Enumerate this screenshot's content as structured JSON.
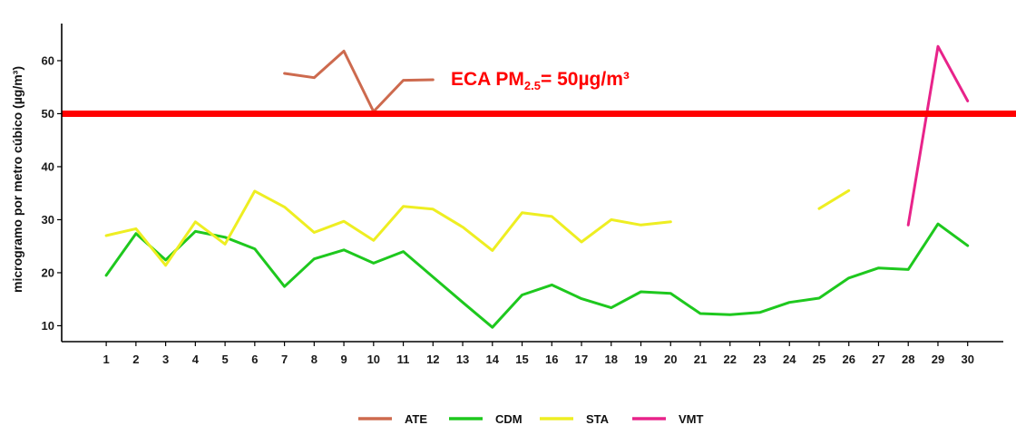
{
  "chart_data": {
    "type": "line",
    "ylabel": "microgramo por metro cúbico (µg/m³)",
    "xlabel": "",
    "x": [
      1,
      2,
      3,
      4,
      5,
      6,
      7,
      8,
      9,
      10,
      11,
      12,
      13,
      14,
      15,
      16,
      17,
      18,
      19,
      20,
      21,
      22,
      23,
      24,
      25,
      26,
      27,
      28,
      29,
      30
    ],
    "xlim": [
      -0.5,
      31.2
    ],
    "ylim": [
      7,
      67
    ],
    "yticks": [
      10,
      20,
      30,
      40,
      50,
      60
    ],
    "grid": false,
    "legend_position": "bottom",
    "reference_line": {
      "value": 50,
      "color": "#ff0000",
      "label_main": "ECA PM",
      "label_sub": "2.5",
      "label_rest": "= 50µg/m³"
    },
    "series": [
      {
        "name": "ATE",
        "color": "#cd6a4e",
        "values": [
          null,
          null,
          null,
          null,
          null,
          null,
          57.6,
          56.8,
          61.8,
          50.4,
          56.3,
          56.4,
          null,
          null,
          null,
          null,
          null,
          null,
          null,
          null,
          null,
          null,
          null,
          null,
          null,
          null,
          null,
          null,
          null,
          null
        ]
      },
      {
        "name": "CDM",
        "color": "#1ec81e",
        "values": [
          19.5,
          27.4,
          22.4,
          27.8,
          26.7,
          24.5,
          17.4,
          22.6,
          24.3,
          21.8,
          24.0,
          19.2,
          14.4,
          9.7,
          15.8,
          17.7,
          15.1,
          13.4,
          16.4,
          16.1,
          12.3,
          12.1,
          12.5,
          14.4,
          15.2,
          19.0,
          20.9,
          20.6,
          29.2,
          25.1
        ]
      },
      {
        "name": "STA",
        "color": "#eeee22",
        "values": [
          27.0,
          28.3,
          21.4,
          29.6,
          25.4,
          35.4,
          32.4,
          27.6,
          29.7,
          26.1,
          32.5,
          32.0,
          28.6,
          24.2,
          31.3,
          30.6,
          25.8,
          30.0,
          29.0,
          29.6,
          null,
          null,
          null,
          null,
          32.1,
          35.5,
          null,
          null,
          null,
          null
        ]
      },
      {
        "name": "VMT",
        "color": "#e8238a",
        "values": [
          null,
          null,
          null,
          null,
          null,
          null,
          null,
          null,
          null,
          null,
          null,
          null,
          null,
          null,
          null,
          null,
          null,
          null,
          null,
          null,
          null,
          null,
          null,
          null,
          null,
          null,
          null,
          29.0,
          62.7,
          52.4
        ]
      }
    ]
  }
}
